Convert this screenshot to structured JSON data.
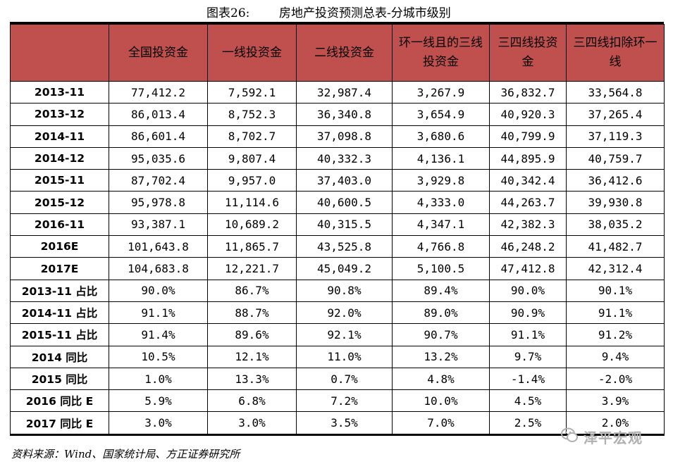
{
  "title": {
    "fig_label": "图表26:",
    "name": "房地产投资预测总表-分城市级别"
  },
  "table": {
    "headers": [
      "",
      "全国投资金",
      "一线投资金",
      "二线投资金",
      "环一线且的三线投资金",
      "三四线投资金",
      "三四线扣除环一线"
    ],
    "rows": [
      [
        "2013-11",
        "77,412.2",
        "7,592.1",
        "32,987.4",
        "3,267.9",
        "36,832.7",
        "33,564.8"
      ],
      [
        "2013-12",
        "86,013.4",
        "8,752.3",
        "36,340.8",
        "3,654.9",
        "40,920.3",
        "37,265.4"
      ],
      [
        "2014-11",
        "86,601.4",
        "8,702.7",
        "37,098.8",
        "3,680.6",
        "40,799.9",
        "37,119.3"
      ],
      [
        "2014-12",
        "95,035.6",
        "9,807.4",
        "40,332.3",
        "4,136.1",
        "44,895.9",
        "40,759.7"
      ],
      [
        "2015-11",
        "87,702.4",
        "9,957.0",
        "37,403.0",
        "3,929.8",
        "40,342.4",
        "36,412.6"
      ],
      [
        "2015-12",
        "95,978.8",
        "11,114.6",
        "40,600.5",
        "4,333.0",
        "44,263.7",
        "39,930.8"
      ],
      [
        "2016-11",
        "93,387.1",
        "10,689.2",
        "40,315.5",
        "4,347.1",
        "42,382.3",
        "38,035.2"
      ],
      [
        "2016E",
        "101,643.8",
        "11,865.7",
        "43,525.8",
        "4,766.8",
        "46,248.2",
        "41,482.7"
      ],
      [
        "2017E",
        "104,683.8",
        "12,221.7",
        "45,049.2",
        "5,100.5",
        "47,412.8",
        "42,312.4"
      ],
      [
        "2013-11 占比",
        "90.0%",
        "86.7%",
        "90.8%",
        "89.4%",
        "90.0%",
        "90.1%"
      ],
      [
        "2014-11 占比",
        "91.1%",
        "88.7%",
        "92.0%",
        "89.0%",
        "90.9%",
        "91.1%"
      ],
      [
        "2015-11 占比",
        "91.4%",
        "89.6%",
        "92.1%",
        "90.7%",
        "91.1%",
        "91.2%"
      ],
      [
        "2014 同比",
        "10.5%",
        "12.1%",
        "11.0%",
        "13.2%",
        "9.7%",
        "9.4%"
      ],
      [
        "2015 同比",
        "1.0%",
        "13.3%",
        "0.7%",
        "4.8%",
        "-1.4%",
        "-2.0%"
      ],
      [
        "2016 同比 E",
        "5.9%",
        "6.8%",
        "7.2%",
        "10.0%",
        "4.5%",
        "3.9%"
      ],
      [
        "2017 同比 E",
        "3.0%",
        "3.0%",
        "3.5%",
        "7.0%",
        "2.5%",
        "2.0%"
      ]
    ]
  },
  "source": "资料来源：Wind、国家统计局、方正证券研究所",
  "watermark": {
    "text": "泽平宏观",
    "icon": "wechat-logo-icon"
  },
  "colors": {
    "header_bg": "#c0504d",
    "watermark": "#b0b0b0"
  }
}
